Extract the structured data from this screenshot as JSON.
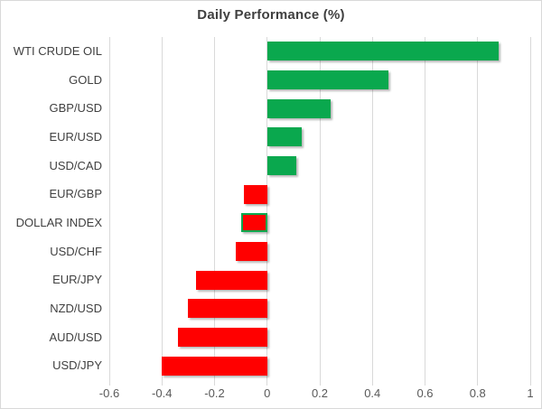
{
  "title": "Daily Performance (%)",
  "colors": {
    "positive_bar": "#0aa84e",
    "negative_bar": "#ff0000",
    "highlight_border": "#0aa84e",
    "gridline": "#d9d9d9",
    "chart_border": "#d9d9d9",
    "title_text": "#3f3f3f",
    "category_text": "#404040",
    "tick_text": "#595959",
    "background": "#ffffff"
  },
  "chart_data": {
    "type": "bar",
    "orientation": "horizontal",
    "title": "Daily Performance (%)",
    "categories": [
      "WTI CRUDE OIL",
      "GOLD",
      "GBP/USD",
      "EUR/USD",
      "USD/CAD",
      "EUR/GBP",
      "DOLLAR INDEX",
      "USD/CHF",
      "EUR/JPY",
      "NZD/USD",
      "AUD/USD",
      "USD/JPY"
    ],
    "values": [
      0.88,
      0.46,
      0.24,
      0.13,
      0.11,
      -0.09,
      -0.1,
      -0.12,
      -0.27,
      -0.3,
      -0.34,
      -0.4
    ],
    "xlim": [
      -0.6,
      1.0
    ],
    "xticks": [
      -0.6,
      -0.4,
      -0.2,
      0,
      0.2,
      0.4,
      0.6,
      0.8,
      1
    ],
    "xtick_labels": [
      "-0.6",
      "-0.4",
      "-0.2",
      "0",
      "0.2",
      "0.4",
      "0.6",
      "0.8",
      "1"
    ],
    "grid": true,
    "legend": false,
    "highlighted_category": "DOLLAR INDEX"
  }
}
